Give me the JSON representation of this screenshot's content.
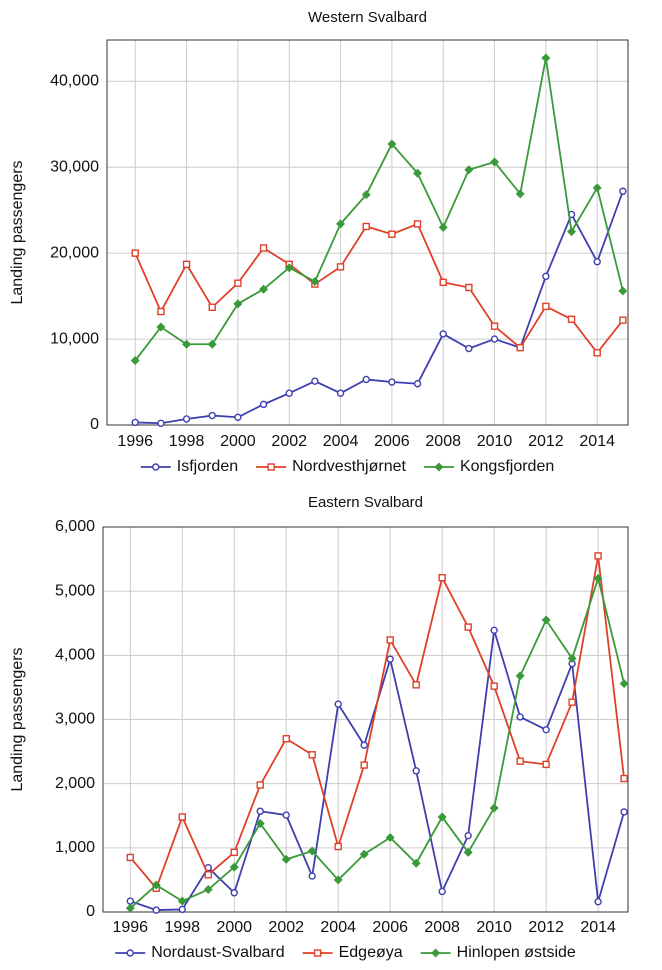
{
  "chart_data": [
    {
      "type": "line",
      "title": "Western Svalbard",
      "y_label": "Landing passengers",
      "x": [
        1996,
        1997,
        1998,
        1999,
        2000,
        2001,
        2002,
        2003,
        2004,
        2005,
        2006,
        2007,
        2008,
        2009,
        2010,
        2011,
        2012,
        2013,
        2014,
        2015
      ],
      "series": [
        {
          "name": "Isfjorden",
          "color": "#3f3fb0",
          "marker": "circle",
          "values": [
            300,
            200,
            700,
            1100,
            900,
            2400,
            3700,
            5100,
            3700,
            5300,
            5000,
            4800,
            10600,
            8900,
            10000,
            9000,
            17300,
            24500,
            19000,
            27200
          ]
        },
        {
          "name": "Nordvesthjørnet",
          "color": "#e0402a",
          "marker": "square",
          "values": [
            20000,
            13200,
            18700,
            13700,
            16500,
            20600,
            18700,
            16400,
            18400,
            23100,
            22200,
            23400,
            16600,
            16000,
            11500,
            9000,
            13800,
            12300,
            8400,
            12200
          ]
        },
        {
          "name": "Kongsfjorden",
          "color": "#3a9a3a",
          "marker": "diamond",
          "values": [
            7500,
            11400,
            9400,
            9400,
            14100,
            15800,
            18300,
            16700,
            23400,
            26800,
            32700,
            29300,
            23000,
            29700,
            30600,
            26900,
            42700,
            22500,
            27600,
            15600
          ]
        }
      ],
      "xlim": [
        1994.9,
        2015.2
      ],
      "xticks": [
        1996,
        1998,
        2000,
        2002,
        2004,
        2006,
        2008,
        2010,
        2012,
        2014
      ],
      "ylim": [
        0,
        44800
      ],
      "yticks": [
        0,
        {
          "value": 10000,
          "label": "10,000"
        },
        {
          "value": 20000,
          "label": "20,000"
        },
        {
          "value": 30000,
          "label": "30,000"
        },
        {
          "value": 40000,
          "label": "40,000"
        }
      ],
      "grid": true
    },
    {
      "type": "line",
      "title": "Eastern Svalbard",
      "y_label": "Landing passengers",
      "x": [
        1996,
        1997,
        1998,
        1999,
        2000,
        2001,
        2002,
        2003,
        2004,
        2005,
        2006,
        2007,
        2008,
        2009,
        2010,
        2011,
        2012,
        2013,
        2014,
        2015
      ],
      "series": [
        {
          "name": "Nordaust-Svalbard",
          "color": "#3f3fb0",
          "marker": "circle",
          "values": [
            170,
            30,
            40,
            690,
            300,
            1570,
            1510,
            560,
            3240,
            2600,
            3940,
            2200,
            320,
            1190,
            4390,
            3040,
            2840,
            3870,
            160,
            1560
          ]
        },
        {
          "name": "Edgeøya",
          "color": "#e0402a",
          "marker": "square",
          "values": [
            850,
            370,
            1480,
            580,
            930,
            1980,
            2700,
            2450,
            1020,
            2290,
            4240,
            3540,
            5210,
            4440,
            3520,
            2350,
            2300,
            3270,
            5550,
            2080
          ]
        },
        {
          "name": "Hinlopen østside",
          "color": "#3a9a3a",
          "marker": "diamond",
          "values": [
            60,
            420,
            170,
            350,
            700,
            1380,
            820,
            950,
            500,
            900,
            1160,
            760,
            1480,
            930,
            1620,
            3680,
            4550,
            3950,
            5200,
            3560
          ]
        }
      ],
      "xlim": [
        1994.95,
        2015.15
      ],
      "xticks": [
        1996,
        1998,
        2000,
        2002,
        2004,
        2006,
        2008,
        2010,
        2012,
        2014
      ],
      "ylim": [
        0,
        6000
      ],
      "yticks": [
        0,
        {
          "value": 1000,
          "label": "1,000"
        },
        {
          "value": 2000,
          "label": "2,000"
        },
        {
          "value": 3000,
          "label": "3,000"
        },
        {
          "value": 4000,
          "label": "4,000"
        },
        {
          "value": 5000,
          "label": "5,000"
        },
        {
          "value": 6000,
          "label": "6,000"
        }
      ],
      "grid": true
    }
  ]
}
